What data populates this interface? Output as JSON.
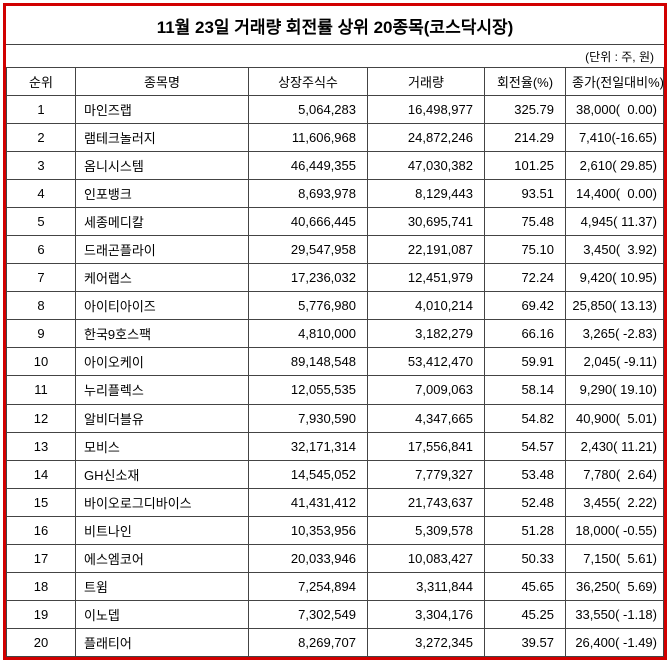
{
  "colors": {
    "frame_border": "#d10000",
    "grid_line": "#444444",
    "text": "#000000",
    "background": "#ffffff"
  },
  "title": "11월 23일 거래량 회전률 상위 20종목(코스닥시장)",
  "unit_note": "(단위 : 주, 원)",
  "chart_data": {
    "type": "table",
    "title": "11월 23일 거래량 회전률 상위 20종목(코스닥시장)",
    "unit_note": "(단위 : 주, 원)",
    "columns": [
      "순위",
      "종목명",
      "상장주식수",
      "거래량",
      "회전율(%)",
      "종가(전일대비%)"
    ],
    "rows": [
      [
        "1",
        "마인즈랩",
        "5,064,283",
        "16,498,977",
        "325.79",
        "38,000(  0.00)"
      ],
      [
        "2",
        "램테크놀러지",
        "11,606,968",
        "24,872,246",
        "214.29",
        "7,410(-16.65)"
      ],
      [
        "3",
        "옴니시스템",
        "46,449,355",
        "47,030,382",
        "101.25",
        "2,610( 29.85)"
      ],
      [
        "4",
        "인포뱅크",
        "8,693,978",
        "8,129,443",
        "93.51",
        "14,400(  0.00)"
      ],
      [
        "5",
        "세종메디칼",
        "40,666,445",
        "30,695,741",
        "75.48",
        "4,945( 11.37)"
      ],
      [
        "6",
        "드래곤플라이",
        "29,547,958",
        "22,191,087",
        "75.10",
        "3,450(  3.92)"
      ],
      [
        "7",
        "케어랩스",
        "17,236,032",
        "12,451,979",
        "72.24",
        "9,420( 10.95)"
      ],
      [
        "8",
        "아이티아이즈",
        "5,776,980",
        "4,010,214",
        "69.42",
        "25,850( 13.13)"
      ],
      [
        "9",
        "한국9호스팩",
        "4,810,000",
        "3,182,279",
        "66.16",
        "3,265( -2.83)"
      ],
      [
        "10",
        "아이오케이",
        "89,148,548",
        "53,412,470",
        "59.91",
        "2,045( -9.11)"
      ],
      [
        "11",
        "누리플렉스",
        "12,055,535",
        "7,009,063",
        "58.14",
        "9,290( 19.10)"
      ],
      [
        "12",
        "알비더블유",
        "7,930,590",
        "4,347,665",
        "54.82",
        "40,900(  5.01)"
      ],
      [
        "13",
        "모비스",
        "32,171,314",
        "17,556,841",
        "54.57",
        "2,430( 11.21)"
      ],
      [
        "14",
        "GH신소재",
        "14,545,052",
        "7,779,327",
        "53.48",
        "7,780(  2.64)"
      ],
      [
        "15",
        "바이오로그디바이스",
        "41,431,412",
        "21,743,637",
        "52.48",
        "3,455(  2.22)"
      ],
      [
        "16",
        "비트나인",
        "10,353,956",
        "5,309,578",
        "51.28",
        "18,000( -0.55)"
      ],
      [
        "17",
        "에스엠코어",
        "20,033,946",
        "10,083,427",
        "50.33",
        "7,150(  5.61)"
      ],
      [
        "18",
        "트윔",
        "7,254,894",
        "3,311,844",
        "45.65",
        "36,250(  5.69)"
      ],
      [
        "19",
        "이노뎁",
        "7,302,549",
        "3,304,176",
        "45.25",
        "33,550( -1.18)"
      ],
      [
        "20",
        "플래티어",
        "8,269,707",
        "3,272,345",
        "39.57",
        "26,400( -1.49)"
      ]
    ]
  }
}
